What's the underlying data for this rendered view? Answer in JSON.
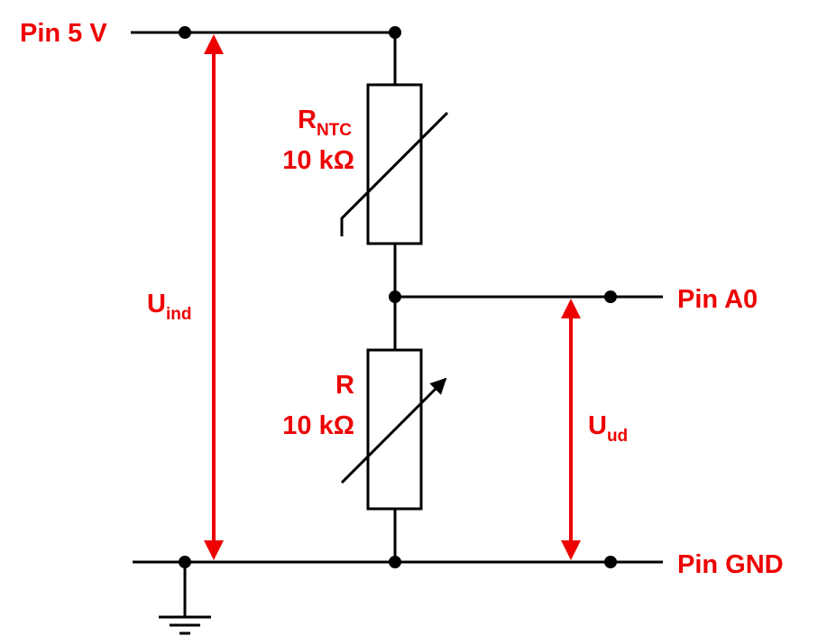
{
  "labels": {
    "pin_5v": "Pin 5 V",
    "pin_a0": "Pin A0",
    "pin_gnd": "Pin GND",
    "u_ind_main": "U",
    "u_ind_sub": "ind",
    "u_ud_main": "U",
    "u_ud_sub": "ud",
    "rntc_main": "R",
    "rntc_sub": "NTC",
    "rntc_value": "10 kΩ",
    "r_name": "R",
    "r_value": "10 kΩ"
  },
  "colors": {
    "wire": "#000000",
    "annotation": "#ee0000"
  },
  "icons": {
    "ground": "ground-symbol-icon",
    "thermistor": "ntc-thermistor-icon",
    "potentiometer": "variable-resistor-icon"
  }
}
